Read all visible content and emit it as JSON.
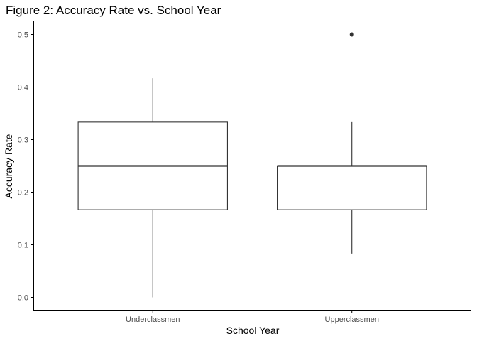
{
  "chart_data": {
    "type": "boxplot",
    "title": "Figure 2: Accuracy Rate vs. School Year",
    "xlabel": "School Year",
    "ylabel": "Accuracy Rate",
    "ylim": [
      -0.025,
      0.525
    ],
    "yticks": [
      0.0,
      0.1,
      0.2,
      0.3,
      0.4,
      0.5
    ],
    "ytick_labels": [
      "0.0",
      "0.1",
      "0.2",
      "0.3",
      "0.4",
      "0.5"
    ],
    "grid": false,
    "legend": "none",
    "categories": [
      "Underclassmen",
      "Upperclassmen"
    ],
    "boxes": [
      {
        "category": "Underclassmen",
        "whisker_low": 0.0,
        "q1": 0.1667,
        "median": 0.25,
        "q3": 0.3333,
        "whisker_high": 0.4167,
        "outliers": []
      },
      {
        "category": "Upperclassmen",
        "whisker_low": 0.0833,
        "q1": 0.1667,
        "median": 0.25,
        "q3": 0.25,
        "whisker_high": 0.3333,
        "outliers": [
          0.5
        ]
      }
    ],
    "colors": {
      "box_stroke": "#333333",
      "box_fill": "#ffffff",
      "axis": "#000000",
      "outlier": "#333333"
    }
  }
}
